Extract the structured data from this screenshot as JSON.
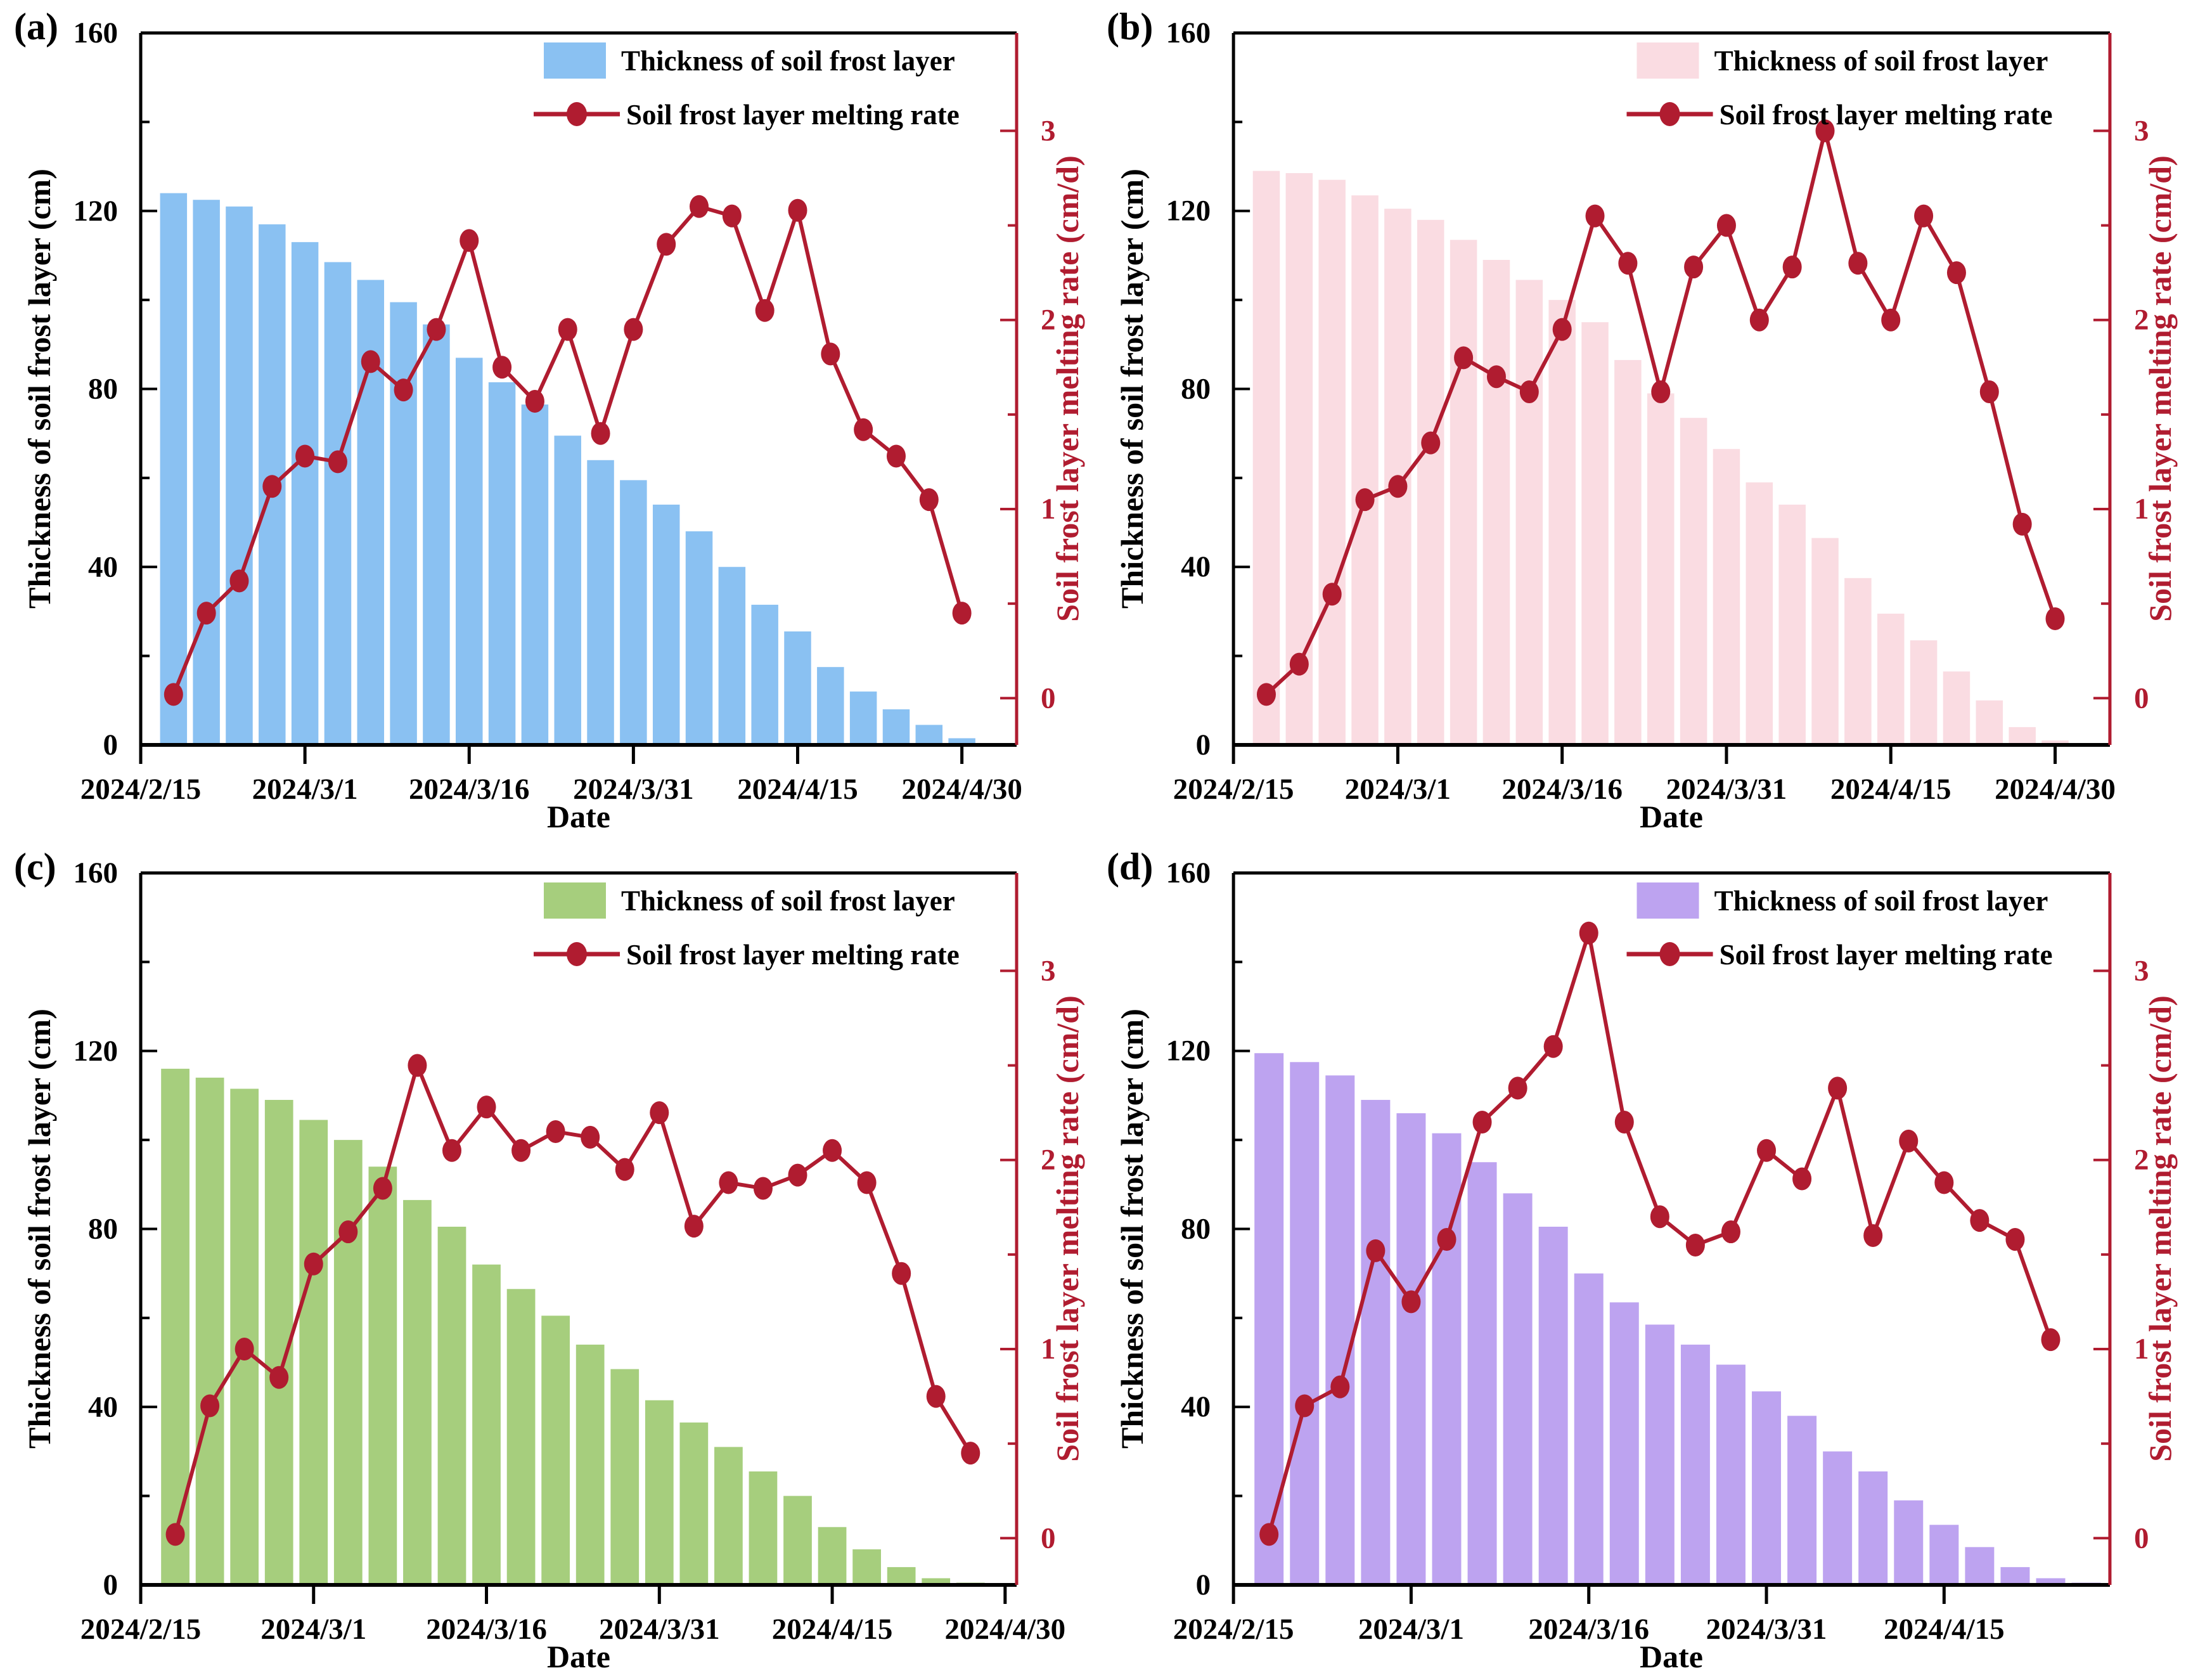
{
  "shared": {
    "colors": {
      "line": "#B01C30",
      "axis": "#000000",
      "background": "#FFFFFF"
    },
    "legend": {
      "bar_label": "Thickness of soil frost layer",
      "line_label": "Soil frost layer melting rate"
    },
    "axes": {
      "left_title": "Thickness of soil frost layer (cm)",
      "right_title": "Soil frost layer melting rate  (cm/d)",
      "x_title": "Date",
      "left_ticks": [
        0,
        40,
        80,
        120,
        160
      ],
      "left_minor_ticks": [
        20,
        60,
        100,
        140
      ],
      "left_max": 160,
      "right_ticks": [
        0,
        1,
        2,
        3
      ],
      "right_minor_ticks": [
        0.5,
        1.5,
        2.5
      ],
      "right_axis_map": {
        "rate0_cm": 10.5,
        "cm_per_unit": 42.5
      }
    }
  },
  "chart_data": [
    {
      "type": "bar",
      "panel_label": "(a)",
      "bar_color": "#8AC1F2",
      "x_max_days": 80,
      "x_tick_labels": [
        "2024/2/15",
        "2024/3/1",
        "2024/3/16",
        "2024/3/31",
        "2024/4/15",
        "2024/4/30"
      ],
      "categories": [
        "2024/2/18",
        "2024/2/21",
        "2024/2/24",
        "2024/2/27",
        "2024/3/1",
        "2024/3/4",
        "2024/3/7",
        "2024/3/10",
        "2024/3/13",
        "2024/3/16",
        "2024/3/19",
        "2024/3/22",
        "2024/3/25",
        "2024/3/28",
        "2024/3/31",
        "2024/4/3",
        "2024/4/6",
        "2024/4/9",
        "2024/4/12",
        "2024/4/15",
        "2024/4/18",
        "2024/4/21",
        "2024/4/24",
        "2024/4/27",
        "2024/4/30"
      ],
      "series": [
        {
          "name": "Thickness of soil frost layer",
          "type": "bar",
          "values": [
            124,
            122.5,
            121,
            117,
            113,
            108.5,
            104.5,
            99.5,
            94.5,
            87,
            81.5,
            76.5,
            69.5,
            64,
            59.5,
            54,
            48,
            40,
            31.5,
            25.5,
            17.5,
            12,
            8,
            4.5,
            1.5
          ]
        },
        {
          "name": "Soil frost layer melting rate",
          "type": "line",
          "values": [
            0.02,
            0.45,
            0.62,
            1.12,
            1.28,
            1.25,
            1.78,
            1.63,
            1.95,
            2.42,
            1.75,
            1.57,
            1.95,
            1.4,
            1.95,
            2.4,
            2.6,
            2.55,
            2.05,
            2.58,
            1.82,
            1.42,
            1.28,
            1.05,
            0.45
          ]
        }
      ]
    },
    {
      "type": "bar",
      "panel_label": "(b)",
      "bar_color": "#FADCE2",
      "x_max_days": 80,
      "x_tick_labels": [
        "2024/2/15",
        "2024/3/1",
        "2024/3/16",
        "2024/3/31",
        "2024/4/15",
        "2024/4/30"
      ],
      "categories": [
        "2024/2/18",
        "2024/2/21",
        "2024/2/24",
        "2024/2/27",
        "2024/3/1",
        "2024/3/4",
        "2024/3/7",
        "2024/3/10",
        "2024/3/13",
        "2024/3/16",
        "2024/3/19",
        "2024/3/22",
        "2024/3/25",
        "2024/3/28",
        "2024/3/31",
        "2024/4/3",
        "2024/4/6",
        "2024/4/9",
        "2024/4/12",
        "2024/4/15",
        "2024/4/18",
        "2024/4/21",
        "2024/4/24",
        "2024/4/27",
        "2024/4/30"
      ],
      "series": [
        {
          "name": "Thickness of soil frost layer",
          "type": "bar",
          "values": [
            129,
            128.5,
            127,
            123.5,
            120.5,
            118,
            113.5,
            109,
            104.5,
            100,
            95,
            86.5,
            79,
            73.5,
            66.5,
            59,
            54,
            46.5,
            37.5,
            29.5,
            23.5,
            16.5,
            10,
            4,
            1
          ]
        },
        {
          "name": "Soil frost layer melting rate",
          "type": "line",
          "values": [
            0.02,
            0.18,
            0.55,
            1.05,
            1.12,
            1.35,
            1.8,
            1.7,
            1.62,
            1.95,
            2.55,
            2.3,
            1.62,
            2.28,
            2.5,
            2.0,
            2.28,
            3.0,
            2.3,
            2.0,
            2.55,
            2.25,
            1.62,
            0.92,
            0.42
          ]
        }
      ]
    },
    {
      "type": "bar",
      "panel_label": "(c)",
      "bar_color": "#A6CE7D",
      "x_max_days": 76,
      "x_tick_labels": [
        "2024/2/15",
        "2024/3/1",
        "2024/3/16",
        "2024/3/31",
        "2024/4/15",
        "2024/4/30"
      ],
      "categories": [
        "2024/2/18",
        "2024/2/21",
        "2024/2/24",
        "2024/2/27",
        "2024/3/1",
        "2024/3/4",
        "2024/3/7",
        "2024/3/10",
        "2024/3/13",
        "2024/3/16",
        "2024/3/19",
        "2024/3/22",
        "2024/3/25",
        "2024/3/28",
        "2024/3/31",
        "2024/4/3",
        "2024/4/6",
        "2024/4/9",
        "2024/4/12",
        "2024/4/15",
        "2024/4/18",
        "2024/4/21",
        "2024/4/24",
        "2024/4/27"
      ],
      "series": [
        {
          "name": "Thickness of soil frost layer",
          "type": "bar",
          "values": [
            116,
            114,
            111.5,
            109,
            104.5,
            100,
            94,
            86.5,
            80.5,
            72,
            66.5,
            60.5,
            54,
            48.5,
            41.5,
            36.5,
            31,
            25.5,
            20,
            13,
            8,
            4,
            1.5,
            0.5
          ]
        },
        {
          "name": "Soil frost layer melting rate",
          "type": "line",
          "values": [
            0.02,
            0.7,
            1.0,
            0.85,
            1.45,
            1.62,
            1.85,
            2.5,
            2.05,
            2.28,
            2.05,
            2.15,
            2.12,
            1.95,
            2.25,
            1.65,
            1.88,
            1.85,
            1.92,
            2.05,
            1.88,
            1.4,
            0.75,
            0.45
          ]
        }
      ]
    },
    {
      "type": "bar",
      "panel_label": "(d)",
      "bar_color": "#BDA3F0",
      "x_max_days": 74,
      "x_tick_labels": [
        "2024/2/15",
        "2024/3/1",
        "2024/3/16",
        "2024/3/31",
        "2024/4/15"
      ],
      "categories": [
        "2024/2/18",
        "2024/2/21",
        "2024/2/24",
        "2024/2/27",
        "2024/3/1",
        "2024/3/4",
        "2024/3/7",
        "2024/3/10",
        "2024/3/13",
        "2024/3/16",
        "2024/3/19",
        "2024/3/22",
        "2024/3/25",
        "2024/3/28",
        "2024/3/31",
        "2024/4/3",
        "2024/4/6",
        "2024/4/9",
        "2024/4/12",
        "2024/4/15",
        "2024/4/18",
        "2024/4/21",
        "2024/4/24",
        "2024/4/27"
      ],
      "series": [
        {
          "name": "Thickness of soil frost layer",
          "type": "bar",
          "values": [
            119.5,
            117.5,
            114.5,
            109,
            106,
            101.5,
            95,
            88,
            80.5,
            70,
            63.5,
            58.5,
            54,
            49.5,
            43.5,
            38,
            30,
            25.5,
            19,
            13.5,
            8.5,
            4,
            1.5,
            0.5
          ]
        },
        {
          "name": "Soil frost layer melting rate",
          "type": "line",
          "values": [
            0.02,
            0.7,
            0.8,
            1.52,
            1.25,
            1.58,
            2.2,
            2.38,
            2.6,
            3.2,
            2.2,
            1.7,
            1.55,
            1.62,
            2.05,
            1.9,
            2.38,
            1.6,
            2.1,
            1.88,
            1.68,
            1.58,
            1.05,
            null
          ]
        }
      ]
    }
  ]
}
